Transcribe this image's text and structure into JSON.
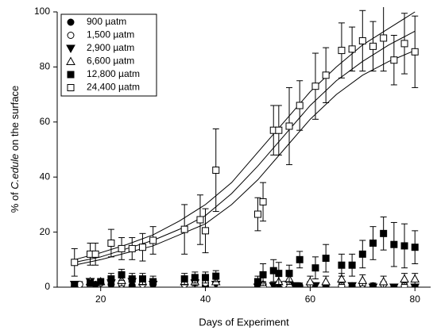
{
  "chart_data": {
    "type": "scatter",
    "xlabel": "Days of Experiment",
    "ylabel_parts": [
      "% of ",
      "C.edule",
      " on the surface"
    ],
    "xlim": [
      11.7,
      83
    ],
    "xticks": [
      20,
      40,
      60,
      80
    ],
    "ylim": [
      0,
      100
    ],
    "yticks": [
      0,
      20,
      40,
      60,
      80,
      100
    ],
    "legend": "upper left",
    "series": [
      {
        "name": "900 µatm",
        "marker": "circle",
        "filled": true,
        "color": "#000000",
        "x": [
          15,
          19,
          22,
          26,
          30,
          36,
          40,
          50,
          54,
          58,
          63,
          68,
          72,
          76,
          80
        ],
        "values": [
          0.5,
          1,
          1,
          0.5,
          1,
          1,
          0.5,
          0.5,
          1,
          0.5,
          0.5,
          0.5,
          0.5,
          0,
          0
        ],
        "errors": [
          1,
          1,
          1,
          1,
          1,
          1,
          1,
          1,
          1,
          1,
          1,
          1,
          1,
          1,
          1
        ]
      },
      {
        "name": "1,500 µatm",
        "marker": "circle",
        "filled": false,
        "color": "#000000",
        "x": [
          16,
          20,
          24,
          28,
          36,
          40,
          51,
          55,
          60,
          66,
          70,
          74,
          78
        ],
        "values": [
          1,
          1.5,
          1,
          1,
          1,
          1.5,
          1,
          1,
          1,
          0.5,
          1,
          1,
          0.5
        ],
        "errors": [
          1,
          1.5,
          1,
          1,
          1,
          1,
          1,
          1,
          1,
          1,
          1,
          1,
          1
        ]
      },
      {
        "name": "2,900 µatm",
        "marker": "triangle-down",
        "filled": true,
        "color": "#000000",
        "x": [
          15,
          18,
          22,
          26,
          30,
          38,
          42,
          50,
          53,
          57,
          61,
          68,
          72,
          76,
          80
        ],
        "values": [
          1,
          2,
          1.5,
          2,
          1,
          1.5,
          1,
          0,
          0.5,
          0.5,
          0.5,
          0.5,
          0,
          0,
          0
        ],
        "errors": [
          1,
          1,
          1,
          1,
          1,
          1,
          1,
          1,
          1,
          1,
          1,
          1,
          1,
          1,
          1
        ]
      },
      {
        "name": "6,600 µatm",
        "marker": "triangle-up",
        "filled": false,
        "color": "#000000",
        "x": [
          18,
          20,
          24,
          28,
          36,
          38,
          42,
          51,
          54,
          56,
          60,
          63,
          66,
          70,
          74,
          78,
          80
        ],
        "values": [
          2,
          2,
          2.5,
          2,
          2,
          2,
          2,
          1,
          2,
          3,
          2,
          2,
          3,
          2.5,
          2,
          3,
          3
        ],
        "errors": [
          1,
          1,
          2,
          1,
          1,
          1,
          1,
          1,
          2,
          2,
          2,
          2,
          2,
          2,
          2,
          2,
          2
        ]
      },
      {
        "name": "12,800 µatm",
        "marker": "square",
        "filled": true,
        "color": "#000000",
        "x": [
          15,
          18,
          20,
          22,
          24,
          26,
          28,
          30,
          36,
          38,
          40,
          42,
          50,
          51,
          53,
          54,
          56,
          58,
          61,
          63,
          66,
          68,
          70,
          72,
          74,
          76,
          78,
          80
        ],
        "values": [
          1,
          1.5,
          2,
          3,
          4.5,
          3,
          3,
          2,
          3,
          3.5,
          3.5,
          4,
          2,
          4.5,
          6,
          5,
          5,
          10,
          7,
          10.5,
          8,
          8,
          12,
          16,
          19.5,
          15.5,
          15,
          14.5
        ],
        "errors": [
          1,
          1,
          1,
          2,
          2,
          2,
          2,
          2,
          2,
          2,
          2,
          2,
          2,
          4,
          4,
          4,
          3,
          3,
          4,
          5,
          4,
          4,
          5,
          6,
          6,
          8,
          8,
          6
        ]
      },
      {
        "name": "24,400 µatm",
        "marker": "square",
        "filled": false,
        "color": "#000000",
        "x": [
          15,
          18,
          19,
          22,
          24,
          26,
          28,
          30,
          36,
          39,
          40,
          42,
          50,
          51,
          53,
          54,
          56,
          58,
          61,
          63,
          66,
          68,
          70,
          72,
          74,
          76,
          78,
          80
        ],
        "values": [
          9,
          12,
          12,
          16,
          14,
          14,
          14.5,
          17,
          21,
          24.5,
          20.5,
          42.5,
          26.5,
          31,
          57,
          57,
          58.5,
          66,
          73,
          77,
          86,
          86.5,
          89.5,
          87.5,
          90.5,
          82.5,
          88.5,
          85.5
        ],
        "errors": [
          5,
          4,
          4,
          5,
          4,
          4,
          5,
          5,
          9,
          9,
          8,
          15,
          6,
          7,
          9,
          9,
          14,
          9,
          12,
          10,
          10,
          8,
          11,
          9,
          12,
          9,
          11,
          13
        ]
      }
    ],
    "fit_curves": [
      {
        "x": [
          15,
          20,
          25,
          30,
          35,
          40,
          45,
          50,
          55,
          60,
          65,
          70,
          75,
          80
        ],
        "values": [
          10,
          12.5,
          15.5,
          19,
          24,
          30,
          38,
          49,
          60,
          71,
          80,
          88,
          94,
          100
        ]
      },
      {
        "x": [
          15,
          20,
          25,
          30,
          35,
          40,
          45,
          50,
          55,
          60,
          65,
          70,
          75,
          80
        ],
        "values": [
          9,
          11,
          14,
          17,
          21,
          26,
          34,
          44,
          55,
          66,
          75,
          82,
          88,
          93
        ]
      },
      {
        "x": [
          15,
          20,
          25,
          30,
          35,
          40,
          45,
          50,
          55,
          60,
          65,
          70,
          75,
          80
        ],
        "values": [
          8,
          10,
          12.5,
          15,
          19,
          23,
          30,
          39,
          50,
          61,
          70,
          77,
          82,
          86
        ]
      }
    ]
  }
}
